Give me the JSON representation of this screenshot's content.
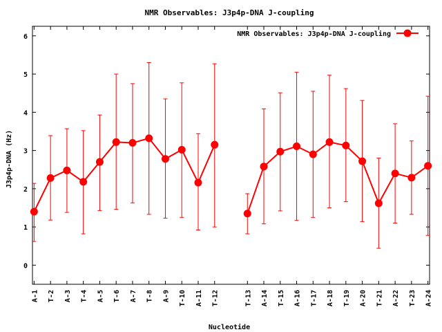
{
  "chart_data": {
    "type": "line",
    "title": "NMR Observables: J3p4p-DNA J-coupling",
    "xlabel": "Nucleotide",
    "ylabel": "J3p4p-DNA (Hz)",
    "ylim": [
      -0.5,
      6.25
    ],
    "yticks": [
      0,
      1,
      2,
      3,
      4,
      5,
      6
    ],
    "grid": false,
    "legend_position": "top-right",
    "color": "#ff0000",
    "series": [
      {
        "name": "NMR Observables: J3p4p-DNA J-coupling",
        "segments": [
          {
            "categories": [
              "A-1",
              "T-2",
              "A-3",
              "T-4",
              "A-5",
              "T-6",
              "A-7",
              "T-8",
              "A-9",
              "T-10",
              "A-11",
              "T-12"
            ],
            "positions": [
              1,
              2,
              3,
              4,
              5,
              6,
              7,
              8,
              9,
              10,
              11,
              12
            ],
            "values": [
              1.4,
              2.28,
              2.48,
              2.18,
              2.7,
              3.22,
              3.2,
              3.32,
              2.78,
              3.02,
              2.16,
              3.15
            ],
            "err_low": [
              0.62,
              1.18,
              1.38,
              0.82,
              1.43,
              1.46,
              1.63,
              1.33,
              1.23,
              1.25,
              0.92,
              1.0
            ],
            "err_high": [
              2.14,
              3.39,
              3.57,
              3.52,
              3.93,
              5.0,
              4.75,
              5.3,
              4.35,
              4.77,
              3.44,
              5.27
            ]
          },
          {
            "categories": [
              "T-13",
              "A-14",
              "T-15",
              "A-16",
              "T-17",
              "A-18",
              "T-19",
              "A-20",
              "T-21",
              "A-22",
              "T-23",
              "A-24"
            ],
            "positions": [
              14,
              15,
              16,
              17,
              18,
              19,
              20,
              21,
              22,
              23,
              24,
              25
            ],
            "values": [
              1.35,
              2.58,
              2.97,
              3.11,
              2.9,
              3.22,
              3.13,
              2.72,
              1.62,
              2.4,
              2.29,
              2.6
            ],
            "err_low": [
              0.82,
              1.08,
              1.42,
              1.17,
              1.25,
              1.5,
              1.66,
              1.14,
              0.44,
              1.1,
              1.33,
              0.78
            ],
            "err_high": [
              1.87,
              4.09,
              4.51,
              5.05,
              4.55,
              4.97,
              4.62,
              4.31,
              2.8,
              3.7,
              3.25,
              4.42
            ]
          }
        ]
      }
    ],
    "xlim": [
      0.9,
      25.1
    ]
  }
}
